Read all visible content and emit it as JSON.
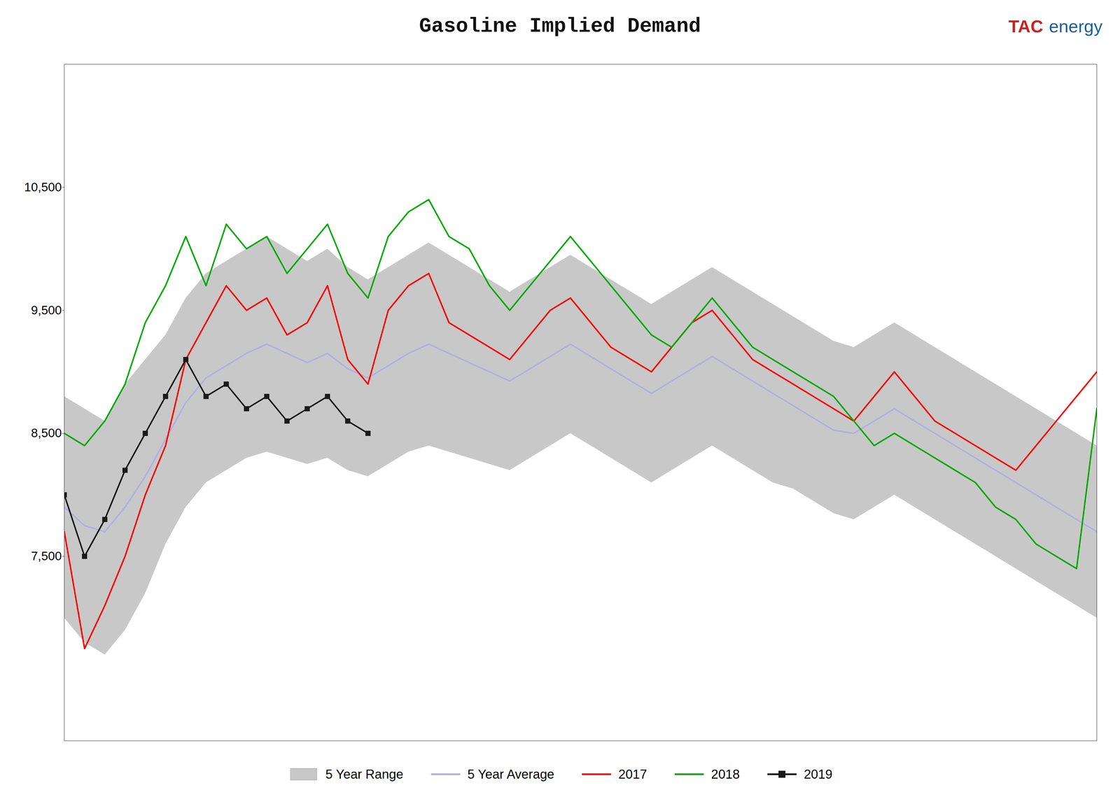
{
  "chart_data": {
    "type": "line",
    "title": "Gasoline Implied Demand",
    "annotations": [
      {
        "text": "TAC",
        "color": "#cc2222"
      },
      {
        "text": "energy",
        "color": "#1a5fa8"
      }
    ],
    "categories": [
      null,
      null,
      null,
      null,
      null,
      null,
      null,
      null,
      null,
      null,
      null,
      null,
      null,
      null,
      null,
      null,
      null,
      null,
      null,
      null,
      null,
      null,
      null,
      null,
      null,
      null,
      null,
      null,
      null,
      null,
      null,
      null,
      null,
      null,
      null,
      null,
      null,
      null,
      null,
      null,
      null,
      null,
      null,
      null,
      null,
      null,
      null,
      null,
      null,
      null,
      null,
      null
    ],
    "ylim": [
      6000,
      11500
    ],
    "yticks": [
      {
        "value": 10500,
        "label": "10,500"
      },
      {
        "value": 9500,
        "label": "9,500"
      },
      {
        "value": 8500,
        "label": "8,500"
      },
      {
        "value": 7500,
        "label": "7,500"
      }
    ],
    "tick_labels": "y",
    "legend": "bottom",
    "series": [
      {
        "name": "5 Year Range",
        "type": "area",
        "color": "#c8c8c8",
        "low": [
          7000,
          6800,
          6700,
          6900,
          7200,
          7600,
          7900,
          8100,
          8200,
          8300,
          8350,
          8300,
          8250,
          8300,
          8200,
          8150,
          8250,
          8350,
          8400,
          8350,
          8300,
          8250,
          8200,
          8300,
          8400,
          8500,
          8400,
          8300,
          8200,
          8100,
          8200,
          8300,
          8400,
          8300,
          8200,
          8100,
          8050,
          7950,
          7850,
          7800,
          7900,
          8000,
          7900,
          7800,
          7700,
          7600,
          7500,
          7400,
          7300,
          7200,
          7100,
          7000
        ],
        "high": [
          8800,
          8700,
          8600,
          8900,
          9100,
          9300,
          9600,
          9800,
          9900,
          10000,
          10100,
          10000,
          9900,
          10000,
          9850,
          9750,
          9850,
          9950,
          10050,
          9950,
          9850,
          9750,
          9650,
          9750,
          9850,
          9950,
          9850,
          9750,
          9650,
          9550,
          9650,
          9750,
          9850,
          9750,
          9650,
          9550,
          9450,
          9350,
          9250,
          9200,
          9300,
          9400,
          9300,
          9200,
          9100,
          9000,
          8900,
          8800,
          8700,
          8600,
          8500,
          8400
        ]
      },
      {
        "name": "5 Year Average",
        "type": "line",
        "color": "#b0b0e0",
        "values": [
          7900,
          7750,
          7700,
          7900,
          8150,
          8450,
          8750,
          8950,
          9050,
          9150,
          9225,
          9150,
          9075,
          9150,
          9025,
          8950,
          9050,
          9150,
          9225,
          9150,
          9075,
          9000,
          8925,
          9025,
          9125,
          9225,
          9125,
          9025,
          8925,
          8825,
          8925,
          9025,
          9125,
          9025,
          8925,
          8825,
          8725,
          8625,
          8525,
          8500,
          8600,
          8700,
          8600,
          8500,
          8400,
          8300,
          8200,
          8100,
          8000,
          7900,
          7800,
          7700
        ]
      },
      {
        "name": "2017",
        "type": "line",
        "color": "#ff0000",
        "values": [
          7700,
          6750,
          7100,
          7500,
          8000,
          8400,
          9100,
          9400,
          9700,
          9500,
          9600,
          9300,
          9400,
          9700,
          9100,
          8900,
          9500,
          9700,
          9800,
          9400,
          9300,
          9200,
          9100,
          9300,
          9500,
          9600,
          9400,
          9200,
          9100,
          9000,
          9200,
          9400,
          9500,
          9300,
          9100,
          9000,
          8900,
          8800,
          8700,
          8600,
          8800,
          9000,
          8800,
          8600,
          8500,
          8400,
          8300,
          8200,
          8400,
          8600,
          8800,
          9000
        ]
      },
      {
        "name": "2018",
        "type": "line",
        "color": "#00aa00",
        "values": [
          8500,
          8400,
          8600,
          8900,
          9400,
          9700,
          10100,
          9700,
          10200,
          10000,
          10100,
          9800,
          10000,
          10200,
          9800,
          9600,
          10100,
          10300,
          10400,
          10100,
          10000,
          9700,
          9500,
          9700,
          9900,
          10100,
          9900,
          9700,
          9500,
          9300,
          9200,
          9400,
          9600,
          9400,
          9200,
          9100,
          9000,
          8900,
          8800,
          8600,
          8400,
          8500,
          8400,
          8300,
          8200,
          8100,
          7900,
          7800,
          7600,
          7500,
          7400,
          8700
        ]
      },
      {
        "name": "2019",
        "type": "line",
        "color": "#1a1a1a",
        "marker": "square",
        "values": [
          8000,
          7500,
          7800,
          8200,
          8500,
          8800,
          9100,
          8800,
          8900,
          8700,
          8800,
          8600,
          8700,
          8800,
          8600,
          8500,
          null,
          null,
          null,
          null,
          null,
          null,
          null,
          null,
          null,
          null,
          null,
          null,
          null,
          null,
          null,
          null,
          null,
          null,
          null,
          null,
          null,
          null,
          null,
          null,
          null,
          null,
          null,
          null,
          null,
          null,
          null,
          null,
          null,
          null,
          null,
          null
        ]
      }
    ]
  }
}
